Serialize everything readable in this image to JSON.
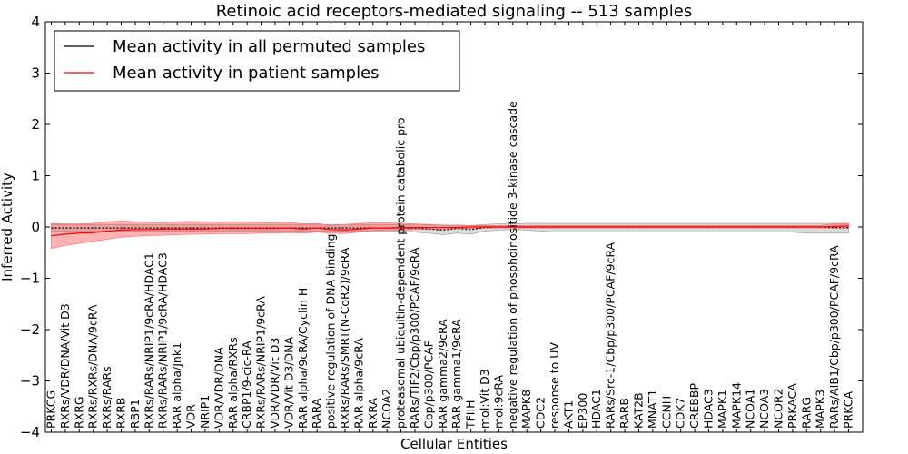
{
  "chart_data": {
    "type": "line",
    "title": "Retinoic acid receptors-mediated signaling -- 513 samples",
    "xlabel": "Cellular Entities",
    "ylabel": "Inferred Activity",
    "ylim": [
      -4,
      4
    ],
    "yticks": [
      -4,
      -3,
      -2,
      -1,
      0,
      1,
      2,
      3,
      4
    ],
    "legend": {
      "position": "top-left",
      "entries": [
        {
          "label": "Mean activity in all permuted samples",
          "color": "#000000"
        },
        {
          "label": "Mean activity in patient samples",
          "color": "#ff0000"
        }
      ]
    },
    "categories": [
      "PRKCG",
      "RXRs/VDR/DNA/Vit D3",
      "RXRG",
      "RXRs/RXRs/DNA/9cRA",
      "RXRs/RARs",
      "RXRB",
      "RBP1",
      "RXRs/RARs/NRIP1/9cRA/HDAC1",
      "RXRs/RARs/NRIP1/9cRA/HDAC3",
      "RAR alpha/Jnk1",
      "VDR",
      "NRIP1",
      "VDR/VDR/DNA",
      "RAR alpha/RXRs",
      "CRBP1/9-cic-RA",
      "RXRs/RARs/NRIP1/9cRA",
      "VDR/VDR/Vit D3",
      "VDR/Vit D3/DNA",
      "RAR alpha/9cRA/Cyclin H",
      "RARA",
      "positive regulation of DNA binding",
      "RXRs/RARs/SMRT(N-CoR2)/9cRA",
      "RAR alpha/9cRA",
      "RXRA",
      "NCOA2",
      "proteasomal ubiquitin-dependent protein catabolic pro",
      "RARs/TIF2/Cbp/p300/PCAF/9cRA",
      "Cbp/p300/PCAF",
      "RAR gamma2/9cRA",
      "RAR gamma1/9cRA",
      "TFIIH",
      "mol:Vit D3",
      "mol:9cRA",
      "negative regulation of phosphoinositide 3-kinase cascade",
      "MAPK8",
      "CDC2",
      "response to UV",
      "AKT1",
      "EP300",
      "HDAC1",
      "RARs/Src-1/Cbp/p300/PCAF/9cRA",
      "RARB",
      "KAT2B",
      "MNAT1",
      "CCNH",
      "CDK7",
      "CREBBP",
      "HDAC3",
      "MAPK1",
      "MAPK14",
      "NCOA1",
      "NCOA3",
      "NCOR2",
      "PRKACA",
      "RARG",
      "MAPK3",
      "RARs/AIB1/Cbp/p300/PCAF/9cRA",
      "PRKCA"
    ],
    "series": [
      {
        "name": "Mean activity in all permuted samples",
        "color": "#000000",
        "values": [
          -0.02,
          -0.02,
          -0.02,
          -0.02,
          -0.02,
          -0.02,
          -0.02,
          -0.02,
          -0.02,
          -0.02,
          -0.02,
          -0.02,
          -0.02,
          -0.02,
          -0.02,
          -0.02,
          -0.02,
          -0.02,
          -0.02,
          -0.02,
          -0.02,
          -0.02,
          -0.02,
          -0.02,
          -0.02,
          -0.02,
          -0.02,
          -0.04,
          -0.06,
          -0.03,
          -0.05,
          -0.01,
          0.0,
          0.0,
          0.0,
          0.0,
          0.0,
          0.0,
          0.0,
          0.0,
          0.0,
          0.0,
          0.0,
          0.0,
          0.0,
          0.0,
          0.0,
          0.0,
          0.0,
          0.0,
          0.0,
          0.0,
          0.0,
          0.0,
          0.0,
          0.0,
          -0.01,
          -0.01
        ],
        "lower": [
          -0.08,
          -0.08,
          -0.08,
          -0.08,
          -0.08,
          -0.08,
          -0.08,
          -0.08,
          -0.08,
          -0.08,
          -0.08,
          -0.08,
          -0.08,
          -0.08,
          -0.08,
          -0.08,
          -0.08,
          -0.08,
          -0.08,
          -0.08,
          -0.08,
          -0.08,
          -0.08,
          -0.08,
          -0.08,
          -0.08,
          -0.1,
          -0.12,
          -0.15,
          -0.12,
          -0.14,
          -0.08,
          -0.06,
          -0.05,
          -0.06,
          -0.08,
          -0.1,
          -0.1,
          -0.1,
          -0.1,
          -0.1,
          -0.1,
          -0.1,
          -0.1,
          -0.1,
          -0.1,
          -0.1,
          -0.1,
          -0.1,
          -0.1,
          -0.1,
          -0.1,
          -0.1,
          -0.1,
          -0.12,
          -0.12,
          -0.12,
          -0.12
        ],
        "upper": [
          0.05,
          0.05,
          0.05,
          0.05,
          0.05,
          0.05,
          0.05,
          0.05,
          0.05,
          0.05,
          0.05,
          0.05,
          0.05,
          0.05,
          0.05,
          0.05,
          0.05,
          0.05,
          0.05,
          0.05,
          0.05,
          0.05,
          0.05,
          0.05,
          0.05,
          0.05,
          0.04,
          0.04,
          0.03,
          0.04,
          0.03,
          0.05,
          0.06,
          0.06,
          0.07,
          0.07,
          0.07,
          0.07,
          0.07,
          0.07,
          0.07,
          0.07,
          0.07,
          0.07,
          0.07,
          0.07,
          0.07,
          0.07,
          0.07,
          0.07,
          0.07,
          0.07,
          0.07,
          0.07,
          0.07,
          0.07,
          0.07,
          0.07
        ]
      },
      {
        "name": "Mean activity in patient samples",
        "color": "#ff0000",
        "values": [
          -0.17,
          -0.14,
          -0.12,
          -0.11,
          -0.08,
          -0.06,
          -0.05,
          -0.05,
          -0.04,
          -0.04,
          -0.04,
          -0.04,
          -0.03,
          -0.03,
          -0.03,
          -0.03,
          -0.03,
          -0.02,
          -0.04,
          -0.02,
          -0.05,
          -0.06,
          -0.04,
          -0.02,
          -0.02,
          -0.01,
          -0.01,
          -0.01,
          -0.01,
          -0.01,
          0.0,
          0.0,
          0.0,
          0.0,
          0.0,
          0.0,
          0.0,
          0.0,
          0.0,
          0.0,
          0.0,
          0.0,
          0.0,
          0.0,
          0.0,
          0.0,
          0.0,
          0.0,
          0.0,
          0.0,
          0.0,
          0.0,
          0.0,
          0.0,
          0.0,
          0.0,
          0.01,
          0.02
        ],
        "lower": [
          -0.42,
          -0.36,
          -0.32,
          -0.28,
          -0.24,
          -0.2,
          -0.18,
          -0.17,
          -0.16,
          -0.15,
          -0.14,
          -0.14,
          -0.13,
          -0.13,
          -0.13,
          -0.12,
          -0.12,
          -0.11,
          -0.12,
          -0.1,
          -0.12,
          -0.13,
          -0.1,
          -0.07,
          -0.06,
          -0.06,
          -0.05,
          -0.04,
          -0.04,
          -0.03,
          -0.03,
          -0.02,
          -0.02,
          -0.02,
          -0.02,
          -0.02,
          -0.02,
          -0.02,
          -0.02,
          -0.02,
          -0.02,
          -0.02,
          -0.02,
          -0.02,
          -0.02,
          -0.02,
          -0.02,
          -0.02,
          -0.02,
          -0.02,
          -0.02,
          -0.02,
          -0.02,
          -0.02,
          -0.02,
          -0.02,
          -0.03,
          -0.03
        ],
        "upper": [
          0.07,
          0.06,
          0.06,
          0.07,
          0.1,
          0.12,
          0.1,
          0.09,
          0.08,
          0.1,
          0.11,
          0.1,
          0.09,
          0.1,
          0.09,
          0.09,
          0.08,
          0.09,
          0.06,
          0.07,
          0.03,
          0.05,
          0.07,
          0.08,
          0.08,
          0.07,
          0.06,
          0.05,
          0.04,
          0.03,
          0.03,
          0.03,
          0.03,
          0.03,
          0.03,
          0.03,
          0.03,
          0.03,
          0.03,
          0.03,
          0.03,
          0.03,
          0.03,
          0.03,
          0.03,
          0.03,
          0.03,
          0.03,
          0.03,
          0.03,
          0.03,
          0.03,
          0.03,
          0.03,
          0.03,
          0.03,
          0.06,
          0.07
        ]
      }
    ]
  }
}
